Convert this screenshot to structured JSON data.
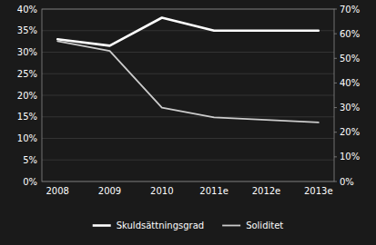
{
  "chart_data": {
    "type": "line",
    "categories": [
      "2008",
      "2009",
      "2010",
      "2011e",
      "2012e",
      "2013e"
    ],
    "series": [
      {
        "name": "Skuldsättningsgrad",
        "color": "#ffffff",
        "values": [
          33,
          31.5,
          38,
          35,
          35,
          35
        ]
      },
      {
        "name": "Soliditet",
        "color": "#cccccc",
        "values": [
          57,
          53,
          30,
          26,
          25,
          24
        ],
        "axis": "y2"
      }
    ],
    "ylim": [
      0,
      40
    ],
    "yticks": [
      {
        "value": 0,
        "label": "0%"
      },
      {
        "value": 5,
        "label": "5%"
      },
      {
        "value": 10,
        "label": "10%"
      },
      {
        "value": 15,
        "label": "15%"
      },
      {
        "value": 20,
        "label": "20%"
      },
      {
        "value": 25,
        "label": "25%"
      },
      {
        "value": 30,
        "label": "30%"
      },
      {
        "value": 35,
        "label": "35%"
      },
      {
        "value": 40,
        "label": "40%"
      }
    ],
    "y2lim": [
      0,
      70
    ],
    "y2ticks": [
      {
        "value": 0,
        "label": "0%"
      },
      {
        "value": 10,
        "label": "10%"
      },
      {
        "value": 20,
        "label": "20%"
      },
      {
        "value": 30,
        "label": "30%"
      },
      {
        "value": 40,
        "label": "40%"
      },
      {
        "value": 50,
        "label": "50%"
      },
      {
        "value": 60,
        "label": "60%"
      },
      {
        "value": 70,
        "label": "70%"
      }
    ],
    "grid": true,
    "legend": "bottom"
  }
}
